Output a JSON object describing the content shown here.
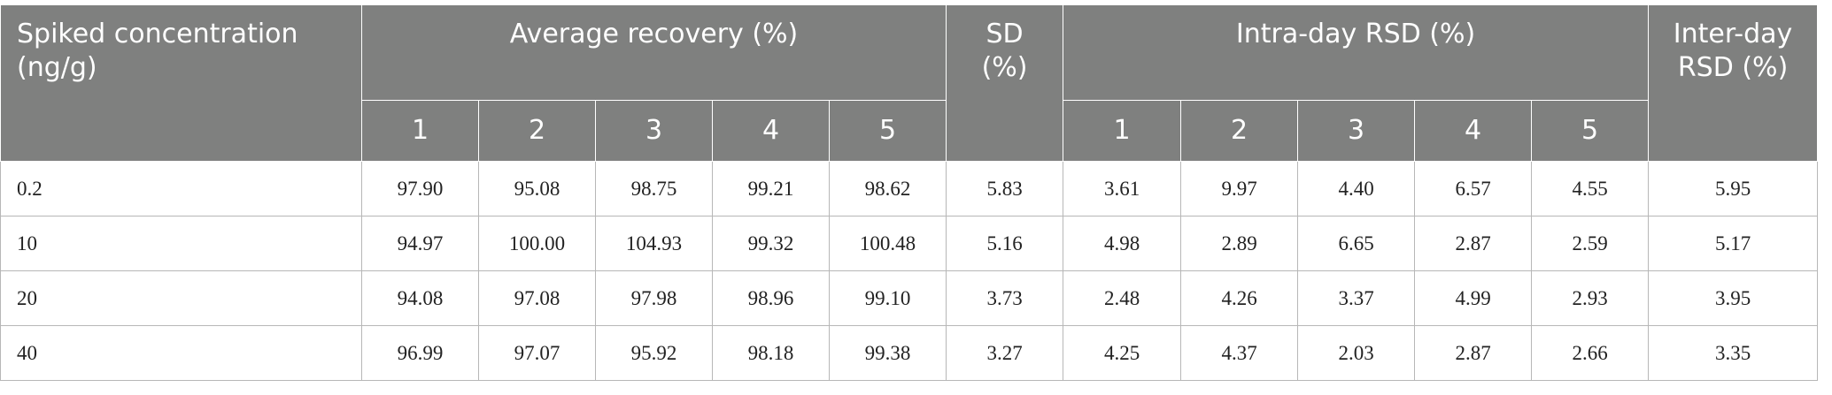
{
  "header": {
    "spiked": "Spiked concentration (ng/g)",
    "avg_recovery": "Average recovery (%)",
    "sd": "SD (%)",
    "intra": "Intra-day RSD (%)",
    "inter": "Inter-day RSD (%)",
    "avg_runs": [
      "1",
      "2",
      "3",
      "4",
      "5"
    ],
    "intra_runs": [
      "1",
      "2",
      "3",
      "4",
      "5"
    ]
  },
  "table": {
    "rows": [
      [
        "0.2",
        "97.90",
        "95.08",
        "98.75",
        "99.21",
        "98.62",
        "5.83",
        "3.61",
        "9.97",
        "4.40",
        "6.57",
        "4.55",
        "5.95"
      ],
      [
        "10",
        "94.97",
        "100.00",
        "104.93",
        "99.32",
        "100.48",
        "5.16",
        "4.98",
        "2.89",
        "6.65",
        "2.87",
        "2.59",
        "5.17"
      ],
      [
        "20",
        "94.08",
        "97.08",
        "97.98",
        "98.96",
        "99.10",
        "3.73",
        "2.48",
        "4.26",
        "3.37",
        "4.99",
        "2.93",
        "3.95"
      ],
      [
        "40",
        "96.99",
        "97.07",
        "95.92",
        "98.18",
        "99.38",
        "3.27",
        "4.25",
        "4.37",
        "2.03",
        "2.87",
        "2.66",
        "3.35"
      ]
    ]
  }
}
